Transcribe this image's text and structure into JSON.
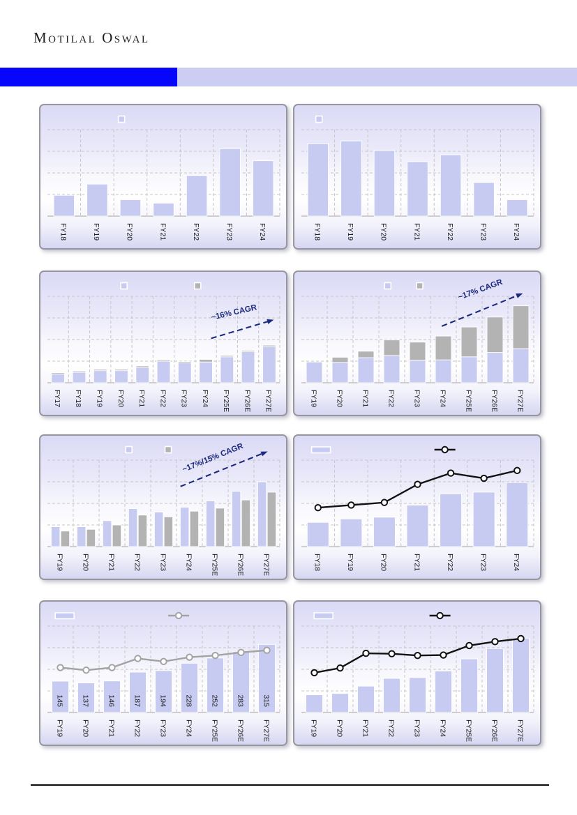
{
  "page": {
    "brand": "Motilal Oswal",
    "colors": {
      "accent_blue": "#0606fb",
      "band_lavender": "#cdcdf4",
      "bar_lavender": "#c7caf1",
      "bar_gray": "#b3b3b3",
      "line_black": "#111111",
      "line_gray": "#a3a3a3",
      "annotation_navy": "#1c2a7e",
      "grid_gray": "#c6c6c6"
    }
  },
  "chart_data": [
    {
      "name": "chart-1",
      "type": "bar",
      "grid_rows": 4,
      "ylim": [
        0,
        100
      ],
      "categories": [
        "FY18",
        "FY19",
        "FY20",
        "FY21",
        "FY22",
        "FY23",
        "FY24"
      ],
      "series": [
        {
          "name": "primary-bars",
          "color": "#c7caf1",
          "max": 100,
          "values": [
            24,
            37,
            19,
            15,
            47,
            78,
            64
          ]
        }
      ],
      "legend": [
        {
          "kind": "square",
          "color": "#c7caf1",
          "x_pct": 33
        }
      ]
    },
    {
      "name": "chart-2",
      "type": "bar",
      "grid_rows": 4,
      "ylim": [
        0,
        100
      ],
      "categories": [
        "FY18",
        "FY19",
        "FY20",
        "FY21",
        "FY22",
        "FY23",
        "FY24"
      ],
      "series": [
        {
          "name": "primary-bars",
          "color": "#c7caf1",
          "max": 100,
          "values": [
            84,
            87,
            76,
            63,
            71,
            39,
            19
          ]
        }
      ],
      "legend": [
        {
          "kind": "square",
          "color": "#c7caf1",
          "x_pct": 10
        }
      ]
    },
    {
      "name": "chart-3",
      "type": "stacked-bar",
      "grid_rows": 4,
      "ylim": [
        0,
        100
      ],
      "categories": [
        "FY17",
        "FY18",
        "FY19",
        "FY20",
        "FY21",
        "FY22",
        "FY23",
        "FY24",
        "FY25E",
        "FY26E",
        "FY27E"
      ],
      "series": [
        {
          "name": "primary-bars",
          "color": "#c7caf1",
          "max": 100,
          "values": [
            10,
            12,
            14,
            14,
            18,
            25,
            23,
            24,
            30,
            36,
            42
          ]
        },
        {
          "name": "secondary-bars",
          "color": "#b3b3b3",
          "max": 100,
          "values": [
            1.5,
            1.5,
            1.5,
            1.5,
            1.5,
            1.5,
            1.5,
            3,
            1.5,
            1.5,
            1.5
          ]
        }
      ],
      "legend": [
        {
          "kind": "square",
          "color": "#c7caf1",
          "x_pct": 34
        },
        {
          "kind": "square",
          "color": "#b3b3b3",
          "x_pct": 64
        }
      ],
      "annotation": {
        "text": "~16% CAGR",
        "color": "#1c2a7e",
        "arrow_pct": [
          69.5,
          46.5,
          95,
          33.5
        ],
        "text_pct": [
          79,
          30
        ],
        "angle_deg": -13
      }
    },
    {
      "name": "chart-4",
      "type": "stacked-bar",
      "grid_rows": 4,
      "ylim": [
        0,
        100
      ],
      "categories": [
        "FY19",
        "FY20",
        "FY21",
        "FY22",
        "FY23",
        "FY24",
        "FY25E",
        "FY26E",
        "FY27E"
      ],
      "series": [
        {
          "name": "primary-bars",
          "color": "#c7caf1",
          "max": 100,
          "values": [
            24,
            23.5,
            29,
            31.5,
            26,
            26.5,
            30,
            35,
            39.5
          ]
        },
        {
          "name": "secondary-bars",
          "color": "#b3b3b3",
          "max": 100,
          "values": [
            0,
            6,
            7.5,
            18,
            21,
            27.5,
            34.5,
            41,
            49.5
          ]
        }
      ],
      "legend": [
        {
          "kind": "square",
          "color": "#c7caf1",
          "x_pct": 38
        },
        {
          "kind": "square",
          "color": "#b3b3b3",
          "x_pct": 51
        }
      ],
      "annotation": {
        "text": "~17% CAGR",
        "color": "#1c2a7e",
        "arrow_pct": [
          60,
          38,
          93,
          15
        ],
        "text_pct": [
          76,
          14
        ],
        "angle_deg": -20
      }
    },
    {
      "name": "chart-5",
      "type": "grouped-bar",
      "grid_rows": 4,
      "ylim": [
        0,
        100
      ],
      "categories": [
        "FY19",
        "FY20",
        "FY21",
        "FY22",
        "FY23",
        "FY24",
        "FY25E",
        "FY26E",
        "FY27E"
      ],
      "series": [
        {
          "name": "primary-bars",
          "color": "#c7caf1",
          "max": 100,
          "values": [
            23,
            23,
            30,
            44,
            40,
            45.5,
            53,
            64,
            75
          ]
        },
        {
          "name": "secondary-bars",
          "color": "#b3b3b3",
          "max": 100,
          "values": [
            18,
            20,
            25,
            36.5,
            34.5,
            41,
            44.5,
            54,
            63
          ]
        }
      ],
      "legend": [
        {
          "kind": "square",
          "color": "#c7caf1",
          "x_pct": 36
        },
        {
          "kind": "square",
          "color": "#b3b3b3",
          "x_pct": 52
        }
      ],
      "annotation": {
        "text": "~17%/15% CAGR",
        "color": "#1c2a7e",
        "arrow_pct": [
          57,
          35.5,
          92.5,
          11
        ],
        "text_pct": [
          70.5,
          17
        ],
        "angle_deg": -22
      }
    },
    {
      "name": "chart-6",
      "type": "bar-line",
      "grid_rows": 4,
      "ylim": [
        0,
        100
      ],
      "categories": [
        "FY18",
        "FY19",
        "FY20",
        "FY21",
        "FY22",
        "FY23",
        "FY24"
      ],
      "series": [
        {
          "name": "primary-bars",
          "color": "#c7caf1",
          "max": 100,
          "values": [
            28,
            32,
            34,
            48,
            61,
            63,
            74
          ]
        }
      ],
      "line": {
        "name": "trend-line",
        "color": "#111111",
        "max": 100,
        "values": [
          45,
          48,
          51,
          72,
          85,
          79,
          88
        ]
      },
      "legend": [
        {
          "kind": "bar",
          "color": "#c7caf1",
          "x_pct": 7
        },
        {
          "kind": "line",
          "color": "#111111",
          "x_pct": 57
        }
      ]
    },
    {
      "name": "chart-7",
      "type": "bar-line",
      "grid_rows": 4,
      "ylim": [
        0,
        400
      ],
      "categories": [
        "FY19",
        "FY20",
        "FY21",
        "FY22",
        "FY23",
        "FY24",
        "FY25E",
        "FY26E",
        "FY27E"
      ],
      "series": [
        {
          "name": "primary-bars",
          "color": "#c7caf1",
          "max": 400,
          "show_labels": true,
          "values": [
            145,
            137,
            146,
            187,
            194,
            228,
            252,
            283,
            315
          ]
        }
      ],
      "line": {
        "name": "trend-line",
        "color": "#a3a3a3",
        "max": 100,
        "values": [
          52,
          49,
          52,
          62.5,
          59,
          64,
          66,
          69.5,
          72
        ]
      },
      "legend": [
        {
          "kind": "bar",
          "color": "#c7caf1",
          "x_pct": 6
        },
        {
          "kind": "line",
          "color": "#a3a3a3",
          "x_pct": 52
        }
      ]
    },
    {
      "name": "chart-8",
      "type": "bar-line",
      "grid_rows": 4,
      "ylim": [
        0,
        100
      ],
      "categories": [
        "FY19",
        "FY20",
        "FY21",
        "FY22",
        "FY23",
        "FY24",
        "FY25E",
        "FY26E",
        "FY27E"
      ],
      "series": [
        {
          "name": "primary-bars",
          "color": "#c7caf1",
          "max": 100,
          "values": [
            20.5,
            22,
            30.5,
            39.5,
            40.5,
            48,
            62,
            74,
            86
          ]
        }
      ],
      "line": {
        "name": "trend-line",
        "color": "#111111",
        "max": 100,
        "values": [
          46,
          51.5,
          68.5,
          68,
          66,
          66.5,
          77.5,
          82,
          85.5
        ]
      },
      "legend": [
        {
          "kind": "bar",
          "color": "#c7caf1",
          "x_pct": 8
        },
        {
          "kind": "line",
          "color": "#111111",
          "x_pct": 55
        }
      ]
    }
  ]
}
